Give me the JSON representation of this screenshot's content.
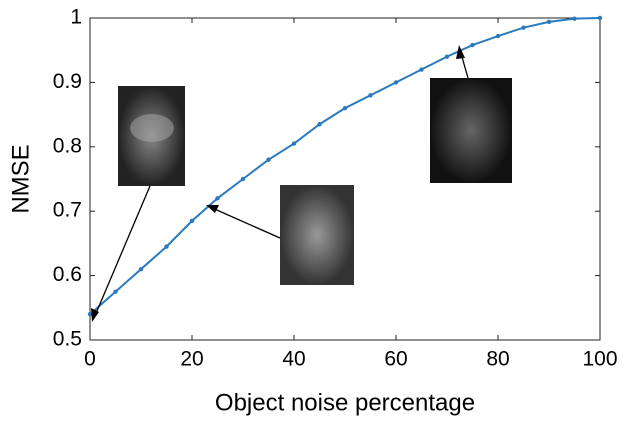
{
  "chart_data": {
    "type": "line",
    "x_label": "Object noise percentage",
    "y_label": "NMSE",
    "x": [
      0,
      5,
      10,
      15,
      20,
      25,
      30,
      35,
      40,
      45,
      50,
      55,
      60,
      65,
      70,
      75,
      80,
      85,
      90,
      95,
      100
    ],
    "series": [
      {
        "name": "NMSE",
        "color": "#2a7ac0",
        "values": [
          0.54,
          0.575,
          0.61,
          0.645,
          0.685,
          0.72,
          0.75,
          0.78,
          0.805,
          0.835,
          0.86,
          0.88,
          0.9,
          0.92,
          0.94,
          0.958,
          0.972,
          0.985,
          0.994,
          0.999,
          1
        ]
      }
    ],
    "xlim": [
      0,
      100
    ],
    "ylim": [
      0.5,
      1
    ],
    "xticks": [
      0,
      20,
      40,
      60,
      80,
      100
    ],
    "yticks": [
      0.5,
      0.6,
      0.7,
      0.8,
      0.9,
      1
    ]
  }
}
